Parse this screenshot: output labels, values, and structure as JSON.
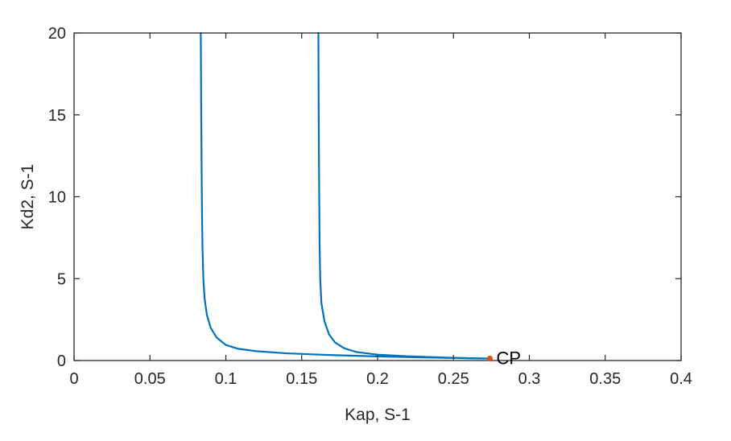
{
  "chart_data": {
    "type": "line",
    "title": "",
    "xlabel": "Kap, S-1",
    "ylabel": "Kd2, S-1",
    "xlim": [
      0,
      0.4
    ],
    "ylim": [
      0,
      20
    ],
    "xticks": [
      0,
      0.05,
      0.1,
      0.15,
      0.2,
      0.25,
      0.3,
      0.35,
      0.4
    ],
    "yticks": [
      0,
      5,
      10,
      15,
      20
    ],
    "xtick_labels": [
      "0",
      "0.05",
      "0.1",
      "0.15",
      "0.2",
      "0.25",
      "0.3",
      "0.35",
      "0.4"
    ],
    "ytick_labels": [
      "0",
      "5",
      "10",
      "15",
      "20"
    ],
    "grid": false,
    "box": true,
    "series": [
      {
        "color": "#0072BD",
        "points": [
          [
            0.0835,
            20
          ],
          [
            0.0838,
            15
          ],
          [
            0.0842,
            10
          ],
          [
            0.0846,
            7
          ],
          [
            0.0852,
            5
          ],
          [
            0.086,
            3.8
          ],
          [
            0.0875,
            2.8
          ],
          [
            0.09,
            2.0
          ],
          [
            0.094,
            1.4
          ],
          [
            0.1,
            0.95
          ],
          [
            0.108,
            0.72
          ],
          [
            0.12,
            0.57
          ],
          [
            0.14,
            0.44
          ],
          [
            0.17,
            0.33
          ],
          [
            0.2,
            0.25
          ],
          [
            0.23,
            0.19
          ],
          [
            0.26,
            0.14
          ],
          [
            0.274,
            0.12
          ]
        ]
      },
      {
        "color": "#0072BD",
        "points": [
          [
            0.161,
            20
          ],
          [
            0.1612,
            15
          ],
          [
            0.1615,
            10.5
          ],
          [
            0.1618,
            7
          ],
          [
            0.1622,
            5
          ],
          [
            0.163,
            3.5
          ],
          [
            0.165,
            2.4
          ],
          [
            0.168,
            1.6
          ],
          [
            0.172,
            1.1
          ],
          [
            0.178,
            0.75
          ],
          [
            0.186,
            0.52
          ],
          [
            0.2,
            0.36
          ],
          [
            0.22,
            0.26
          ],
          [
            0.245,
            0.18
          ],
          [
            0.265,
            0.13
          ],
          [
            0.274,
            0.12
          ]
        ]
      }
    ],
    "annotations": [
      {
        "text": "CP",
        "x": 0.274,
        "y": 0.12,
        "marker_color": "#D95319"
      }
    ]
  }
}
